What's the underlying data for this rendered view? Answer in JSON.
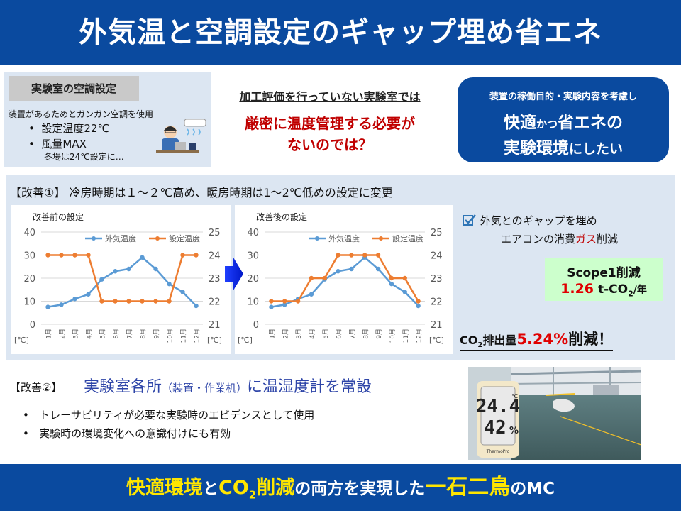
{
  "header": {
    "title": "外気温と空調設定のギャップ埋め省エネ"
  },
  "lab": {
    "tag": "実験室の空調設定",
    "desc": "装置があるためとガンガン空調を使用",
    "bullets": [
      "設定温度22℃",
      "風量MAX"
    ],
    "note": "冬場は24℃設定に…"
  },
  "question": {
    "line1": "加工評価を行っていない実験室では",
    "line2": "厳密に温度管理する必要が",
    "line3": "ないのでは？"
  },
  "goal": {
    "line1": "装置の稼働目的・実験内容を考慮し",
    "line2a": "快適",
    "line2b": "かつ",
    "line2c": "省エネの",
    "line3a": "実験環境",
    "line3b": "にしたい"
  },
  "improvement1": {
    "title": "【改善①】 冷房時期は１～２℃高め、暖房時期は1～2℃低めの設定に変更",
    "result_line1": "外気とのギャップを埋め",
    "result_line2a": "エアコンの消費",
    "result_line2b": "ガス",
    "result_line2c": "削減",
    "scope_title": "Scope1削減",
    "scope_value": "1.26",
    "scope_unit": "t-CO",
    "scope_sub": "2",
    "scope_per": "/年",
    "co2_prefix": "CO",
    "co2_sub": "2",
    "co2_label": "排出量",
    "co2_value": "5.24%",
    "co2_suffix": "削減！"
  },
  "chart_data": [
    {
      "type": "line",
      "title": "改善前の設定",
      "categories": [
        "1月",
        "2月",
        "3月",
        "4月",
        "5月",
        "6月",
        "7月",
        "8月",
        "9月",
        "10月",
        "11月",
        "12月"
      ],
      "series": [
        {
          "name": "外気温度",
          "axis": "left",
          "color": "#5b9bd5",
          "values": [
            7.5,
            8.5,
            11,
            13,
            19.5,
            23,
            24,
            29,
            24,
            17.5,
            14,
            8
          ]
        },
        {
          "name": "設定温度",
          "axis": "right",
          "color": "#ed7d31",
          "values": [
            24,
            24,
            24,
            24,
            22,
            22,
            22,
            22,
            22,
            22,
            24,
            24
          ]
        }
      ],
      "yleft": {
        "min": 0,
        "max": 40,
        "ticks": [
          "0",
          "10",
          "20",
          "30",
          "40"
        ],
        "unit": "[℃]"
      },
      "yright": {
        "min": 21,
        "max": 25,
        "ticks": [
          "21",
          "22",
          "23",
          "24",
          "25"
        ],
        "unit": "[℃]"
      },
      "grid": true,
      "legend": "top"
    },
    {
      "type": "line",
      "title": "改善後の設定",
      "categories": [
        "1月",
        "2月",
        "3月",
        "4月",
        "5月",
        "6月",
        "7月",
        "8月",
        "9月",
        "10月",
        "11月",
        "12月"
      ],
      "series": [
        {
          "name": "外気温度",
          "axis": "left",
          "color": "#5b9bd5",
          "values": [
            7.5,
            8.5,
            11,
            13,
            19.5,
            23,
            24,
            29,
            24,
            17.5,
            14,
            8
          ]
        },
        {
          "name": "設定温度",
          "axis": "right",
          "color": "#ed7d31",
          "values": [
            22,
            22,
            22,
            23,
            23,
            24,
            24,
            24,
            24,
            23,
            23,
            22
          ]
        }
      ],
      "yleft": {
        "min": 0,
        "max": 40,
        "ticks": [
          "0",
          "10",
          "20",
          "30",
          "40"
        ],
        "unit": "[℃]"
      },
      "yright": {
        "min": 21,
        "max": 25,
        "ticks": [
          "21",
          "22",
          "23",
          "24",
          "25"
        ],
        "unit": "[℃]"
      },
      "grid": true,
      "legend": "top"
    }
  ],
  "improvement2": {
    "label": "【改善②】",
    "title_a": "実験室各所",
    "title_b": "（装置・作業机）",
    "title_c": "に温湿度計を常設",
    "bullets": [
      "トレーサビリティが必要な実験時のエビデンスとして使用",
      "実験時の環境変化への意識付けにも有効"
    ],
    "thermo_temp": "24.4",
    "thermo_temp_unit": "℃",
    "thermo_hum": "42",
    "thermo_hum_unit": "%",
    "thermo_brand": "ThermoPro"
  },
  "footer": {
    "part1": "快適環境",
    "part2": "と",
    "part3": "CO",
    "part3_sub": "2",
    "part4": "削減",
    "part5": "の両方を実現した",
    "part6": "一石二鳥",
    "part7": "のMC"
  }
}
